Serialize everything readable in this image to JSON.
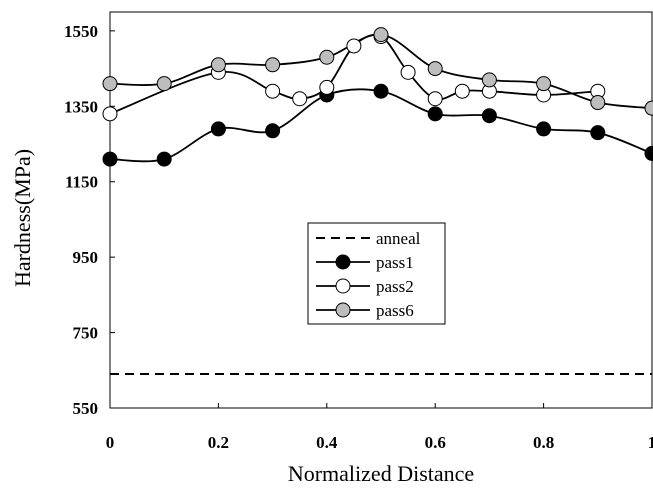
{
  "chart_data": {
    "type": "line",
    "title": "",
    "xlabel": "Normalized Distance",
    "ylabel": "Hardness(MPa)",
    "xlim": [
      0,
      1
    ],
    "ylim": [
      550,
      1600
    ],
    "xticks": [
      0,
      0.2,
      0.4,
      0.6,
      0.8,
      1
    ],
    "xtick_labels": [
      "0",
      "0.2",
      "0.4",
      "0.6",
      "0.8",
      "1"
    ],
    "yticks": [
      550,
      750,
      950,
      1150,
      1350,
      1550
    ],
    "ytick_labels": [
      "550",
      "750",
      "950",
      "1150",
      "1350",
      "1550"
    ],
    "grid": false,
    "legend_position": "center-left",
    "series": [
      {
        "name": "anneal",
        "style": "dashed",
        "marker": "none",
        "color": "#000000",
        "x": [
          0,
          1
        ],
        "y": [
          640,
          640
        ]
      },
      {
        "name": "pass1",
        "style": "solid",
        "marker": "filled-black",
        "color": "#000000",
        "x": [
          0,
          0.1,
          0.2,
          0.3,
          0.4,
          0.5,
          0.6,
          0.7,
          0.8,
          0.9,
          1.0
        ],
        "y": [
          1210,
          1210,
          1290,
          1285,
          1380,
          1390,
          1330,
          1325,
          1290,
          1280,
          1225
        ]
      },
      {
        "name": "pass2",
        "style": "solid",
        "marker": "open",
        "color": "#000000",
        "x": [
          0,
          0.2,
          0.3,
          0.35,
          0.4,
          0.45,
          0.5,
          0.55,
          0.6,
          0.65,
          0.7,
          0.8,
          0.9
        ],
        "y": [
          1330,
          1440,
          1390,
          1370,
          1400,
          1510,
          1535,
          1440,
          1370,
          1390,
          1390,
          1380,
          1390
        ]
      },
      {
        "name": "pass6",
        "style": "solid",
        "marker": "filled-gray",
        "color": "#000000",
        "x": [
          0,
          0.1,
          0.2,
          0.3,
          0.4,
          0.5,
          0.6,
          0.7,
          0.8,
          0.9,
          1.0
        ],
        "y": [
          1410,
          1410,
          1460,
          1460,
          1480,
          1540,
          1450,
          1420,
          1410,
          1360,
          1345
        ]
      }
    ]
  }
}
